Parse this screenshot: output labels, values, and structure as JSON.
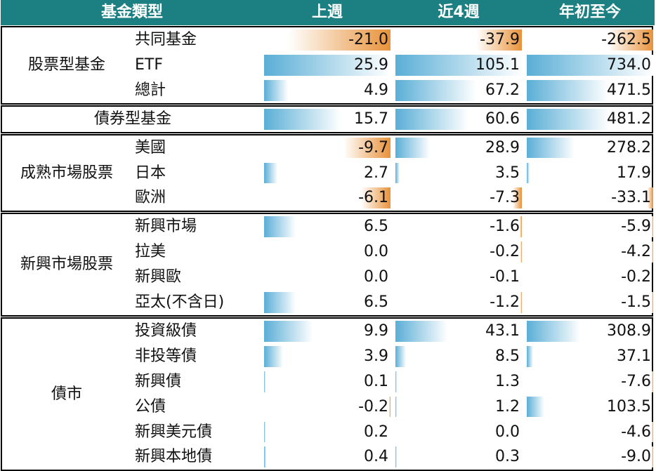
{
  "chart_data": {
    "type": "table",
    "columns": [
      "基金類型",
      "上週",
      "近4週",
      "年初至今"
    ],
    "groups": [
      {
        "name": "股票型基金",
        "rows": [
          {
            "label": "共同基金",
            "values": [
              -21.0,
              -37.9,
              -262.5
            ],
            "display": [
              "-21.0",
              "-37.9",
              "-262.5"
            ]
          },
          {
            "label": "ETF",
            "values": [
              25.9,
              105.1,
              734.0
            ],
            "display": [
              "25.9",
              "105.1",
              "734.0"
            ]
          },
          {
            "label": "總計",
            "values": [
              4.9,
              67.2,
              471.5
            ],
            "display": [
              "4.9",
              "67.2",
              "471.5"
            ]
          }
        ]
      },
      {
        "name": "",
        "rows": [
          {
            "label": "債券型基金",
            "values": [
              15.7,
              60.6,
              481.2
            ],
            "display": [
              "15.7",
              "60.6",
              "481.2"
            ]
          }
        ]
      },
      {
        "name": "成熟市場股票",
        "rows": [
          {
            "label": "美國",
            "values": [
              -9.7,
              28.9,
              278.2
            ],
            "display": [
              "-9.7",
              "28.9",
              "278.2"
            ]
          },
          {
            "label": "日本",
            "values": [
              2.7,
              3.5,
              17.9
            ],
            "display": [
              "2.7",
              "3.5",
              "17.9"
            ]
          },
          {
            "label": "歐洲",
            "values": [
              -6.1,
              -7.3,
              -33.1
            ],
            "display": [
              "-6.1",
              "-7.3",
              "-33.1"
            ]
          }
        ]
      },
      {
        "name": "新興市場股票",
        "rows": [
          {
            "label": "新興市場",
            "values": [
              6.5,
              -1.6,
              -5.9
            ],
            "display": [
              "6.5",
              "-1.6",
              "-5.9"
            ]
          },
          {
            "label": "拉美",
            "values": [
              0.0,
              -0.2,
              -4.2
            ],
            "display": [
              "0.0",
              "-0.2",
              "-4.2"
            ]
          },
          {
            "label": "新興歐",
            "values": [
              0.0,
              -0.1,
              -0.2
            ],
            "display": [
              "0.0",
              "-0.1",
              "-0.2"
            ]
          },
          {
            "label": "亞太(不含日)",
            "values": [
              6.5,
              -1.2,
              -1.5
            ],
            "display": [
              "6.5",
              "-1.2",
              "-1.5"
            ]
          }
        ]
      },
      {
        "name": "債市",
        "rows": [
          {
            "label": "投資級債",
            "values": [
              9.9,
              43.1,
              308.9
            ],
            "display": [
              "9.9",
              "43.1",
              "308.9"
            ]
          },
          {
            "label": "非投等債",
            "values": [
              3.9,
              8.5,
              37.1
            ],
            "display": [
              "3.9",
              "8.5",
              "37.1"
            ]
          },
          {
            "label": "新興債",
            "values": [
              0.1,
              1.3,
              -7.6
            ],
            "display": [
              "0.1",
              "1.3",
              "-7.6"
            ]
          },
          {
            "label": "公債",
            "values": [
              -0.2,
              1.2,
              103.5
            ],
            "display": [
              "-0.2",
              "1.2",
              "103.5"
            ]
          },
          {
            "label": "新興美元債",
            "values": [
              0.2,
              0.0,
              -4.6
            ],
            "display": [
              "0.2",
              "0.0",
              "-4.6"
            ]
          },
          {
            "label": "新興本地債",
            "values": [
              0.4,
              0.3,
              -9.0
            ],
            "display": [
              "0.4",
              "0.3",
              "-9.0"
            ]
          }
        ]
      }
    ],
    "colors": {
      "header": "#1c7f82",
      "positive": "#5aaed6",
      "negative": "#e8923a"
    }
  }
}
